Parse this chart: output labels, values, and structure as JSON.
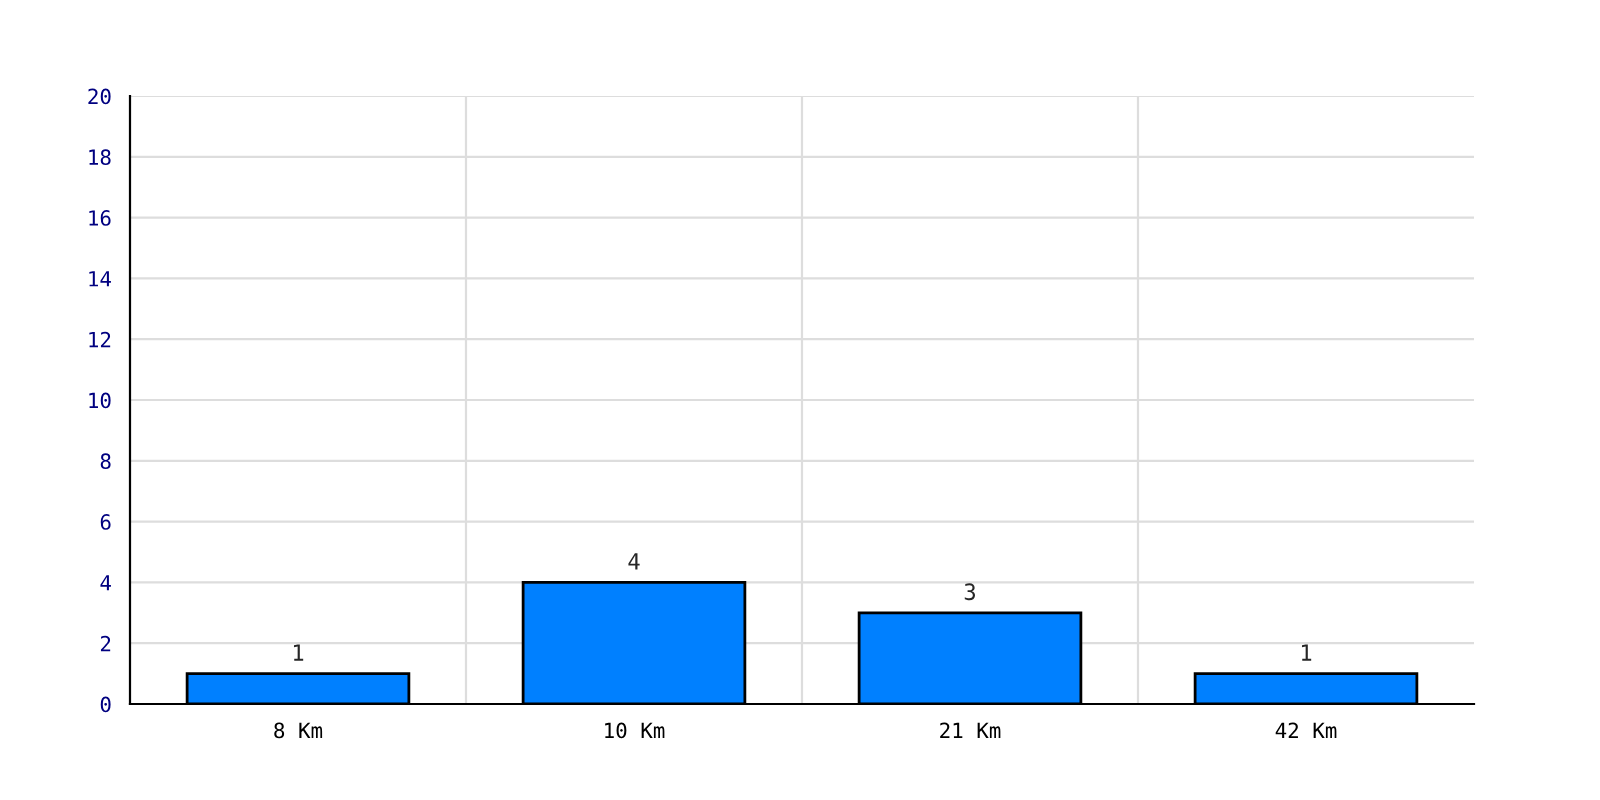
{
  "chart_data": {
    "type": "bar",
    "categories": [
      "8 Km",
      "10 Km",
      "21 Km",
      "42 Km"
    ],
    "values": [
      1,
      4,
      3,
      1
    ],
    "color": "#0080ff",
    "ylim": [
      0,
      20
    ],
    "yticks": [
      0,
      2,
      4,
      6,
      8,
      10,
      12,
      14,
      16,
      18,
      20
    ],
    "grid": true,
    "data_labels": true
  }
}
